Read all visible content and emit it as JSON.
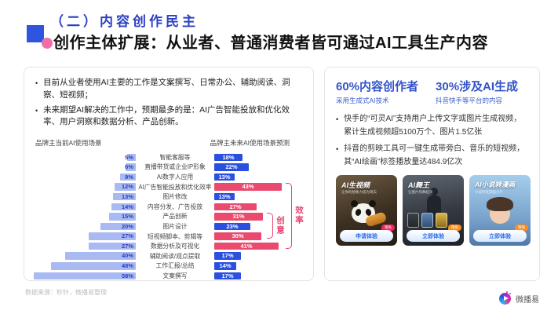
{
  "header": {
    "kicker": "（二）内容创作民主",
    "title": "创作主体扩展：从业者、普通消费者皆可通过AI工具生产内容"
  },
  "left_panel": {
    "bullets": [
      "目前从业者使用AI主要的工作是文案撰写、日常办公、辅助阅读、洞察、短视频；",
      "未来期望AI解决的工作中，预期最多的是：AI广告智能投放和优化效率、用户洞察和数据分析、产品创新。"
    ]
  },
  "chart_data": {
    "type": "bar",
    "variant": "butterfly",
    "left_header": "品牌主当前AI使用场景",
    "right_header": "品牌主未来AI使用场景预测",
    "categories": [
      "智能客服等",
      "直播带货或企业IP形象",
      "AI数字人应用",
      "AI广告智能投放和优化效率",
      "图片修改",
      "内容分发、广告投放",
      "产品创新",
      "图片设计",
      "短视频脚本、剪辑等",
      "数据分析及可视化",
      "辅助阅读/观点提取",
      "工作汇报/总结",
      "文案撰写"
    ],
    "series": [
      {
        "name": "品牌主当前AI使用场景",
        "values": [
          5,
          6,
          9,
          12,
          13,
          14,
          15,
          20,
          27,
          27,
          40,
          48,
          58
        ]
      },
      {
        "name": "品牌主未来AI使用场景预测",
        "values": [
          18,
          22,
          13,
          43,
          13,
          27,
          31,
          23,
          30,
          41,
          17,
          14,
          17
        ]
      }
    ],
    "highlight": [
      false,
      false,
      false,
      true,
      false,
      true,
      true,
      false,
      true,
      true,
      false,
      false,
      false
    ],
    "annotations": [
      {
        "label": "效率",
        "rows": [
          3,
          9
        ]
      },
      {
        "label": "创意",
        "rows": [
          6,
          8
        ]
      }
    ],
    "colors": {
      "current": "#a9b9f2",
      "future_blue": "#2b50e0",
      "future_red": "#ea4a6e",
      "annotation": "#e8446e"
    }
  },
  "right_panel": {
    "stats": [
      {
        "value": "60%内容创作者",
        "sub": "采用生成式AI技术"
      },
      {
        "value": "30%涉及AI生成",
        "sub": "抖音快手等平台的内容"
      }
    ],
    "bullets": [
      "快手的“可灵AI”支持用户上传文字或图片生成视频，累计生成视频超5100万个、图片1.5亿张",
      "抖音的剪映工具可一键生成带旁白、音乐的短视频，其“AI绘画”标签播放量达484.9亿次"
    ],
    "cards": [
      {
        "title": "AI生视频",
        "subtitle": "让你的想象力成为现实",
        "button": "申请体验",
        "badge": "限免"
      },
      {
        "title": "AI舞王",
        "subtitle": "让图片热舞起来",
        "button": "立即体验",
        "badge": "限免"
      },
      {
        "title": "AI小说转漫画",
        "subtitle": "小说秒变漫画大片",
        "button": "立即体验",
        "badge": "限免"
      }
    ]
  },
  "footer": {
    "source": "数据来源：秒针，微播易整理",
    "logo_text": "微播易"
  }
}
